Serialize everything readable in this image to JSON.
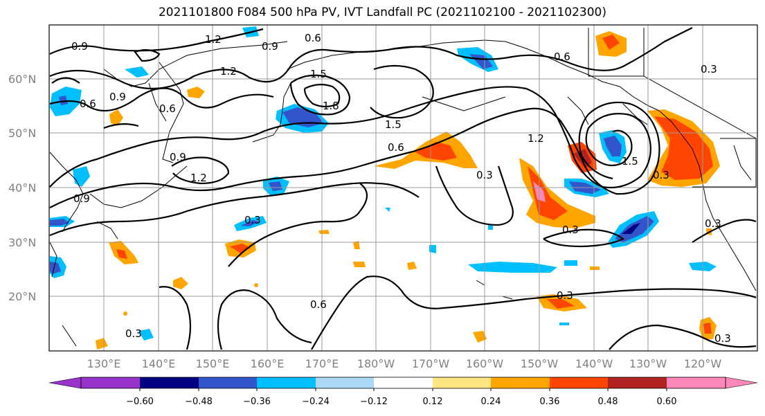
{
  "title": "2021101800 F084 500 hPa PV, IVT Landfall PC (2021102100 - 2021102300)",
  "map": {
    "lat_labels": [
      "60°N",
      "50°N",
      "40°N",
      "30°N",
      "20°N"
    ],
    "lon_labels": [
      "130°E",
      "140°E",
      "150°E",
      "160°E",
      "170°E",
      "180°W",
      "170°W",
      "160°W",
      "150°W",
      "140°W",
      "130°W",
      "120°W"
    ],
    "grid": true
  },
  "contour_labels": [
    "0.9",
    "1.2",
    "0.6",
    "0.9",
    "1.5",
    "1.8",
    "1.5",
    "0.6",
    "0.9",
    "0.6",
    "1.2",
    "0.9",
    "1.2",
    "0.6",
    "0.3",
    "0.3",
    "0.6",
    "0.3",
    "0.6",
    "1.2",
    "0.3",
    "1.5",
    "0.3",
    "0.3",
    "0.3",
    "0.3",
    "0.3",
    "0.9"
  ],
  "colorbar": {
    "tick_labels": [
      "−0.60",
      "−0.48",
      "−0.36",
      "−0.24",
      "−0.12",
      "0.12",
      "0.24",
      "0.36",
      "0.48",
      "0.60"
    ],
    "colors": [
      "#9933cc",
      "#000080",
      "#3355cc",
      "#00bfff",
      "#add8f7",
      "#ffffff",
      "#ffe680",
      "#ffa500",
      "#ff4500",
      "#b22222",
      "#ff88bb",
      "#ff88bb"
    ]
  }
}
